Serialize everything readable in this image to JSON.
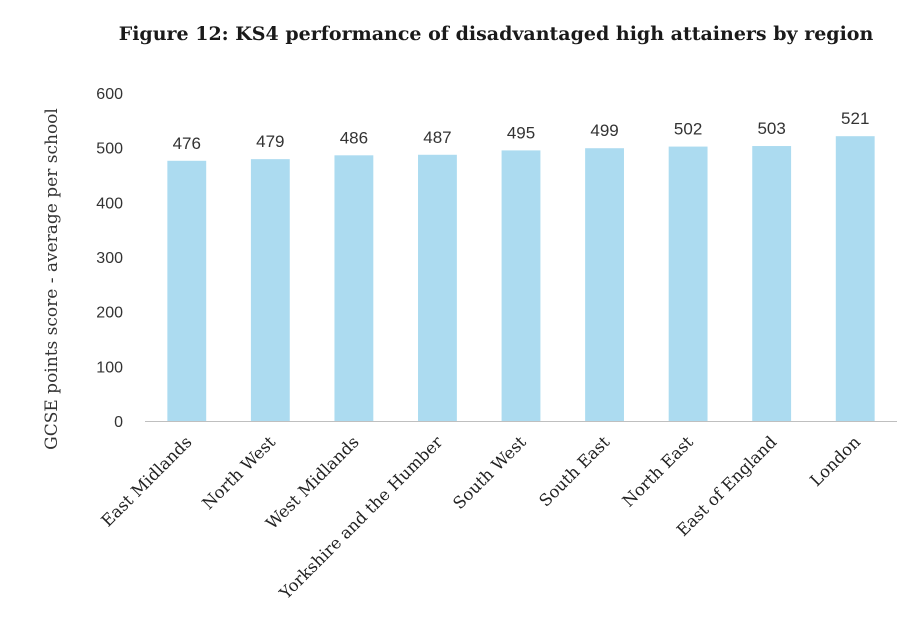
{
  "chart_data": {
    "type": "bar",
    "title": "Figure 12: KS4 performance of disadvantaged high attainers by region",
    "xlabel": "",
    "ylabel": "GCSE points score - average per school",
    "ylim": [
      0,
      600
    ],
    "yticks": [
      0,
      100,
      200,
      300,
      400,
      500,
      600
    ],
    "grid": false,
    "legend": "none",
    "categories": [
      "East Midlands",
      "North West",
      "West Midlands",
      "Yorkshire and the Humber",
      "South West",
      "South East",
      "North East",
      "East of England",
      "London"
    ],
    "values": [
      476,
      479,
      486,
      487,
      495,
      499,
      502,
      503,
      521
    ],
    "bar_color": "#acdbf0",
    "axis_color": "#bfbfbf"
  }
}
